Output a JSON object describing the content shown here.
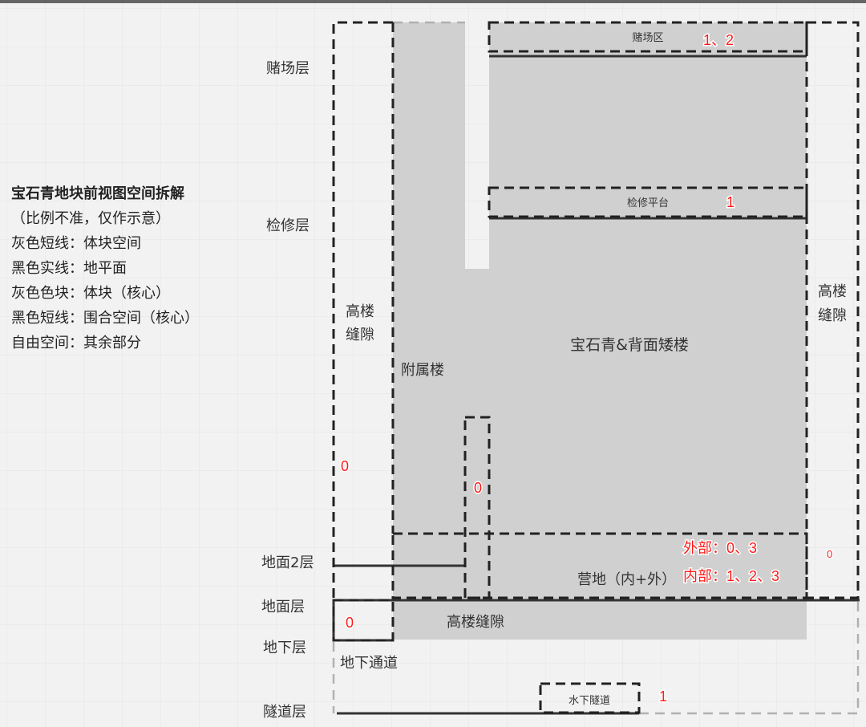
{
  "title": "宝石青地块前视图空间拆解",
  "legend": [
    "（比例不准，仅作示意）",
    "灰色短线：体块空间",
    "黑色实线：地平面",
    "灰色色块：体块（核心）",
    "黑色短线：围合空间（核心）",
    "自由空间：其余部分"
  ],
  "levels": {
    "casino": "赌场层",
    "maintenance": "检修层",
    "ground2": "地面2层",
    "ground": "地面层",
    "underground": "地下层",
    "tunnel": "隧道层"
  },
  "regions": {
    "casino_zone": "赌场区",
    "maintenance_platform": "检修平台",
    "main_building": "宝石青&背面矮楼",
    "annex": "附属楼",
    "gap_left_1": "高楼",
    "gap_left_2": "缝隙",
    "gap_right_1": "高楼",
    "gap_right_2": "缝隙",
    "camp": "营地（内+外）",
    "gap_bottom": "高楼缝隙",
    "underground_passage": "地下通道",
    "underwater_tunnel": "水下隧道"
  },
  "numbers": {
    "casino": "1、2",
    "maintenance": "1",
    "left_gap": "0",
    "mid_gap": "0",
    "right_gap": "0",
    "underground": "0",
    "tunnel": "1",
    "camp_outer": "外部：0、3",
    "camp_inner": "内部：1、2、3"
  },
  "colors": {
    "block": "#d0d0d0",
    "background": "#f2f2f2",
    "number": "#ff1a1a"
  }
}
